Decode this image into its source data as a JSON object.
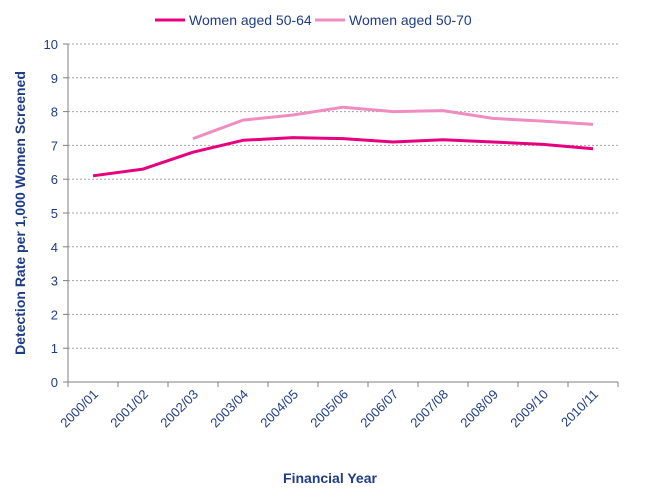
{
  "chart_data": {
    "type": "line",
    "title": "",
    "xlabel": "Financial Year",
    "ylabel": "Detection Rate per 1,000 Women Screened",
    "categories": [
      "2000/01",
      "2001/02",
      "2002/03",
      "2003/04",
      "2004/05",
      "2005/06",
      "2006/07",
      "2007/08",
      "2008/09",
      "2009/10",
      "2010/11"
    ],
    "ylim": [
      0,
      10
    ],
    "yticks": [
      0,
      1,
      2,
      3,
      4,
      5,
      6,
      7,
      8,
      9,
      10
    ],
    "grid": true,
    "legend": "top",
    "series": [
      {
        "name": "Women aged 50-64",
        "color": "#e6007e",
        "values": [
          6.1,
          6.3,
          6.8,
          7.15,
          7.23,
          7.2,
          7.1,
          7.17,
          7.1,
          7.03,
          6.9
        ]
      },
      {
        "name": "Women aged 50-70",
        "color": "#ef8cc0",
        "values": [
          null,
          null,
          7.2,
          7.75,
          7.9,
          8.13,
          8.0,
          8.03,
          7.8,
          7.72,
          7.62
        ]
      }
    ]
  }
}
